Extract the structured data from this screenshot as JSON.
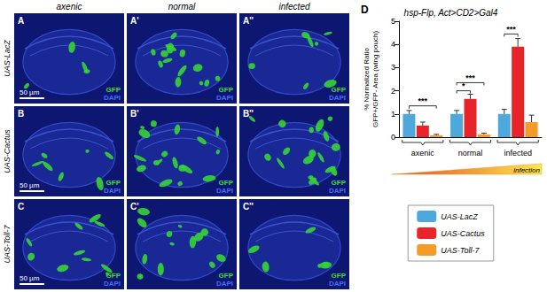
{
  "image_panels": {
    "columns": [
      "axenic",
      "normal",
      "infected"
    ],
    "rows": [
      {
        "label": "UAS-LacZ",
        "panels": [
          "A",
          "A'",
          "A''"
        ]
      },
      {
        "label": "UAS-Cactus",
        "panels": [
          "B",
          "B'",
          "B''"
        ]
      },
      {
        "label": "UAS-Toll-7",
        "panels": [
          "C",
          "C'",
          "C''"
        ]
      }
    ],
    "channels": [
      {
        "name": "GFP",
        "color": "#3cdc3c"
      },
      {
        "name": "DAPI",
        "color": "#4a6cff"
      }
    ],
    "scale_bar": "50 µm"
  },
  "chart_data": {
    "type": "bar",
    "panel_label": "D",
    "title": "hsp-Flp, Act>CD2>Gal4",
    "y_label": [
      "% Normalized Ratio",
      "GFP+/GFP- Area (wing pouch)"
    ],
    "categories": [
      "axenic",
      "normal",
      "infected"
    ],
    "series": [
      {
        "name": "UAS-LacZ",
        "color": "#4fa8dc",
        "values": [
          1.0,
          1.0,
          1.0
        ],
        "errors": [
          0.15,
          0.15,
          0.2
        ]
      },
      {
        "name": "UAS-Cactus",
        "color": "#e8242b",
        "values": [
          0.5,
          1.65,
          3.9
        ],
        "errors": [
          0.15,
          0.2,
          0.35
        ]
      },
      {
        "name": "UAS-Toll-7",
        "color": "#f39c2a",
        "values": [
          0.08,
          0.12,
          0.65
        ],
        "errors": [
          0.04,
          0.05,
          0.3
        ]
      }
    ],
    "ylim": [
      0,
      5
    ],
    "yticks": [
      0,
      1,
      2,
      3,
      4,
      5
    ],
    "grid": false,
    "legend": "bottom",
    "annotations": [
      {
        "category": "axenic",
        "from": "UAS-LacZ",
        "to": "UAS-Toll-7",
        "y": 1.35,
        "label": "***"
      },
      {
        "category": "normal",
        "from": "UAS-LacZ",
        "to": "UAS-Cactus",
        "y": 2.0,
        "label": "*"
      },
      {
        "category": "normal",
        "from": "UAS-LacZ",
        "to": "UAS-Toll-7",
        "y": 2.35,
        "label": "***"
      },
      {
        "category": "infected",
        "from": "UAS-LacZ",
        "to": "UAS-Cactus",
        "y": 4.45,
        "label": "***"
      }
    ],
    "gradient_label": "infection"
  }
}
